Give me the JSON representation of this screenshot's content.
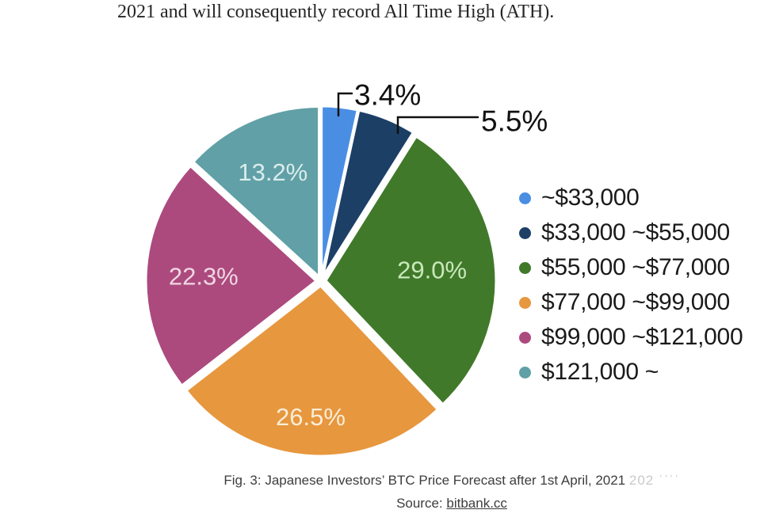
{
  "article": {
    "text": "2021 and will consequently record All Time High (ATH)."
  },
  "chart_data": {
    "type": "pie",
    "title": "Japanese Investors’ BTC Price Forecast after 1st April, 2021",
    "value_unit": "percent",
    "direction": "clockwise",
    "start_angle": "12-o'clock",
    "legend_position": "right",
    "categories": [
      "~$33,000",
      "$33,000 ~$55,000",
      "$55,000 ~$77,000",
      "$77,000 ~$99,000",
      "$99,000 ~$121,000",
      "$121,000 ~"
    ],
    "values": [
      3.4,
      5.5,
      29.0,
      26.5,
      22.3,
      13.2
    ],
    "slices": [
      {
        "label": "~$33,000",
        "value": 3.4,
        "display": "3.4%",
        "color": "#4A8EE4",
        "label_color": "#111111",
        "callout": true
      },
      {
        "label": "$33,000 ~$55,000",
        "value": 5.5,
        "display": "5.5%",
        "color": "#1C3F66",
        "label_color": "#111111",
        "callout": true
      },
      {
        "label": "$55,000 ~$77,000",
        "value": 29.0,
        "display": "29.0%",
        "color": "#41792A",
        "label_color": "#C8E9BB",
        "callout": false
      },
      {
        "label": "$77,000 ~$99,000",
        "value": 26.5,
        "display": "26.5%",
        "color": "#E7973E",
        "label_color": "#F9EDD9",
        "callout": false
      },
      {
        "label": "$99,000 ~$121,000",
        "value": 22.3,
        "display": "22.3%",
        "color": "#AC4A7E",
        "label_color": "#F0D7E3",
        "callout": false
      },
      {
        "label": "$121,000 ~",
        "value": 13.2,
        "display": "13.2%",
        "color": "#60A0A6",
        "label_color": "#DAECEC",
        "callout": false
      }
    ]
  },
  "caption": {
    "text": "Fig. 3: Japanese Investors’ BTC Price Forecast after 1st April, 2021",
    "ghost": "202 ˈˈˈˈ",
    "source_prefix": "Source: ",
    "source_link": "bitbank.cc"
  }
}
